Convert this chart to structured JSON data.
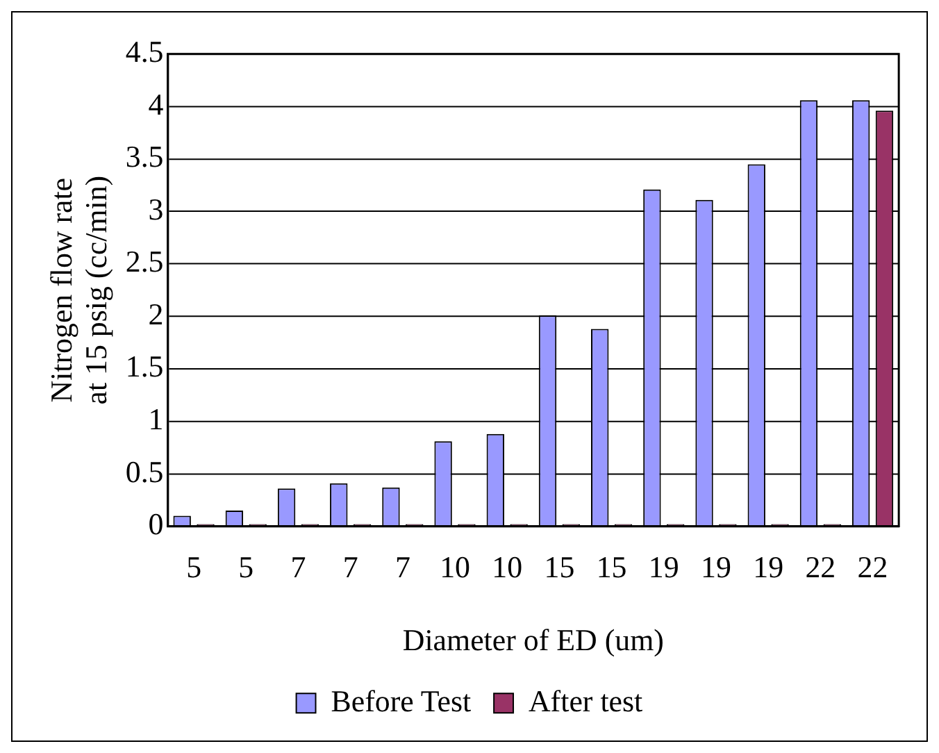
{
  "chart_data": {
    "type": "bar",
    "xlabel": "Diameter of ED (um)",
    "ylabel": "Nitrogen flow rate\nat 15 psig (cc/min)",
    "categories": [
      "5",
      "5",
      "7",
      "7",
      "7",
      "10",
      "10",
      "15",
      "15",
      "19",
      "19",
      "19",
      "22",
      "22"
    ],
    "series": [
      {
        "name": "Before Test",
        "color": "#9999ff",
        "values": [
          0.1,
          0.15,
          0.36,
          0.41,
          0.37,
          0.81,
          0.88,
          2.01,
          1.88,
          3.21,
          3.11,
          3.45,
          4.06,
          4.06
        ]
      },
      {
        "name": "After test",
        "color": "#993366",
        "values": [
          0.02,
          0.02,
          0.02,
          0.02,
          0.02,
          0.02,
          0.02,
          0.02,
          0.02,
          0.02,
          0.02,
          0.02,
          0.02,
          3.96
        ]
      }
    ],
    "ylim": [
      0,
      4.5
    ],
    "yticks": [
      0,
      0.5,
      1,
      1.5,
      2,
      2.5,
      3,
      3.5,
      4,
      4.5
    ],
    "grid": "y",
    "legend": "bottom"
  }
}
